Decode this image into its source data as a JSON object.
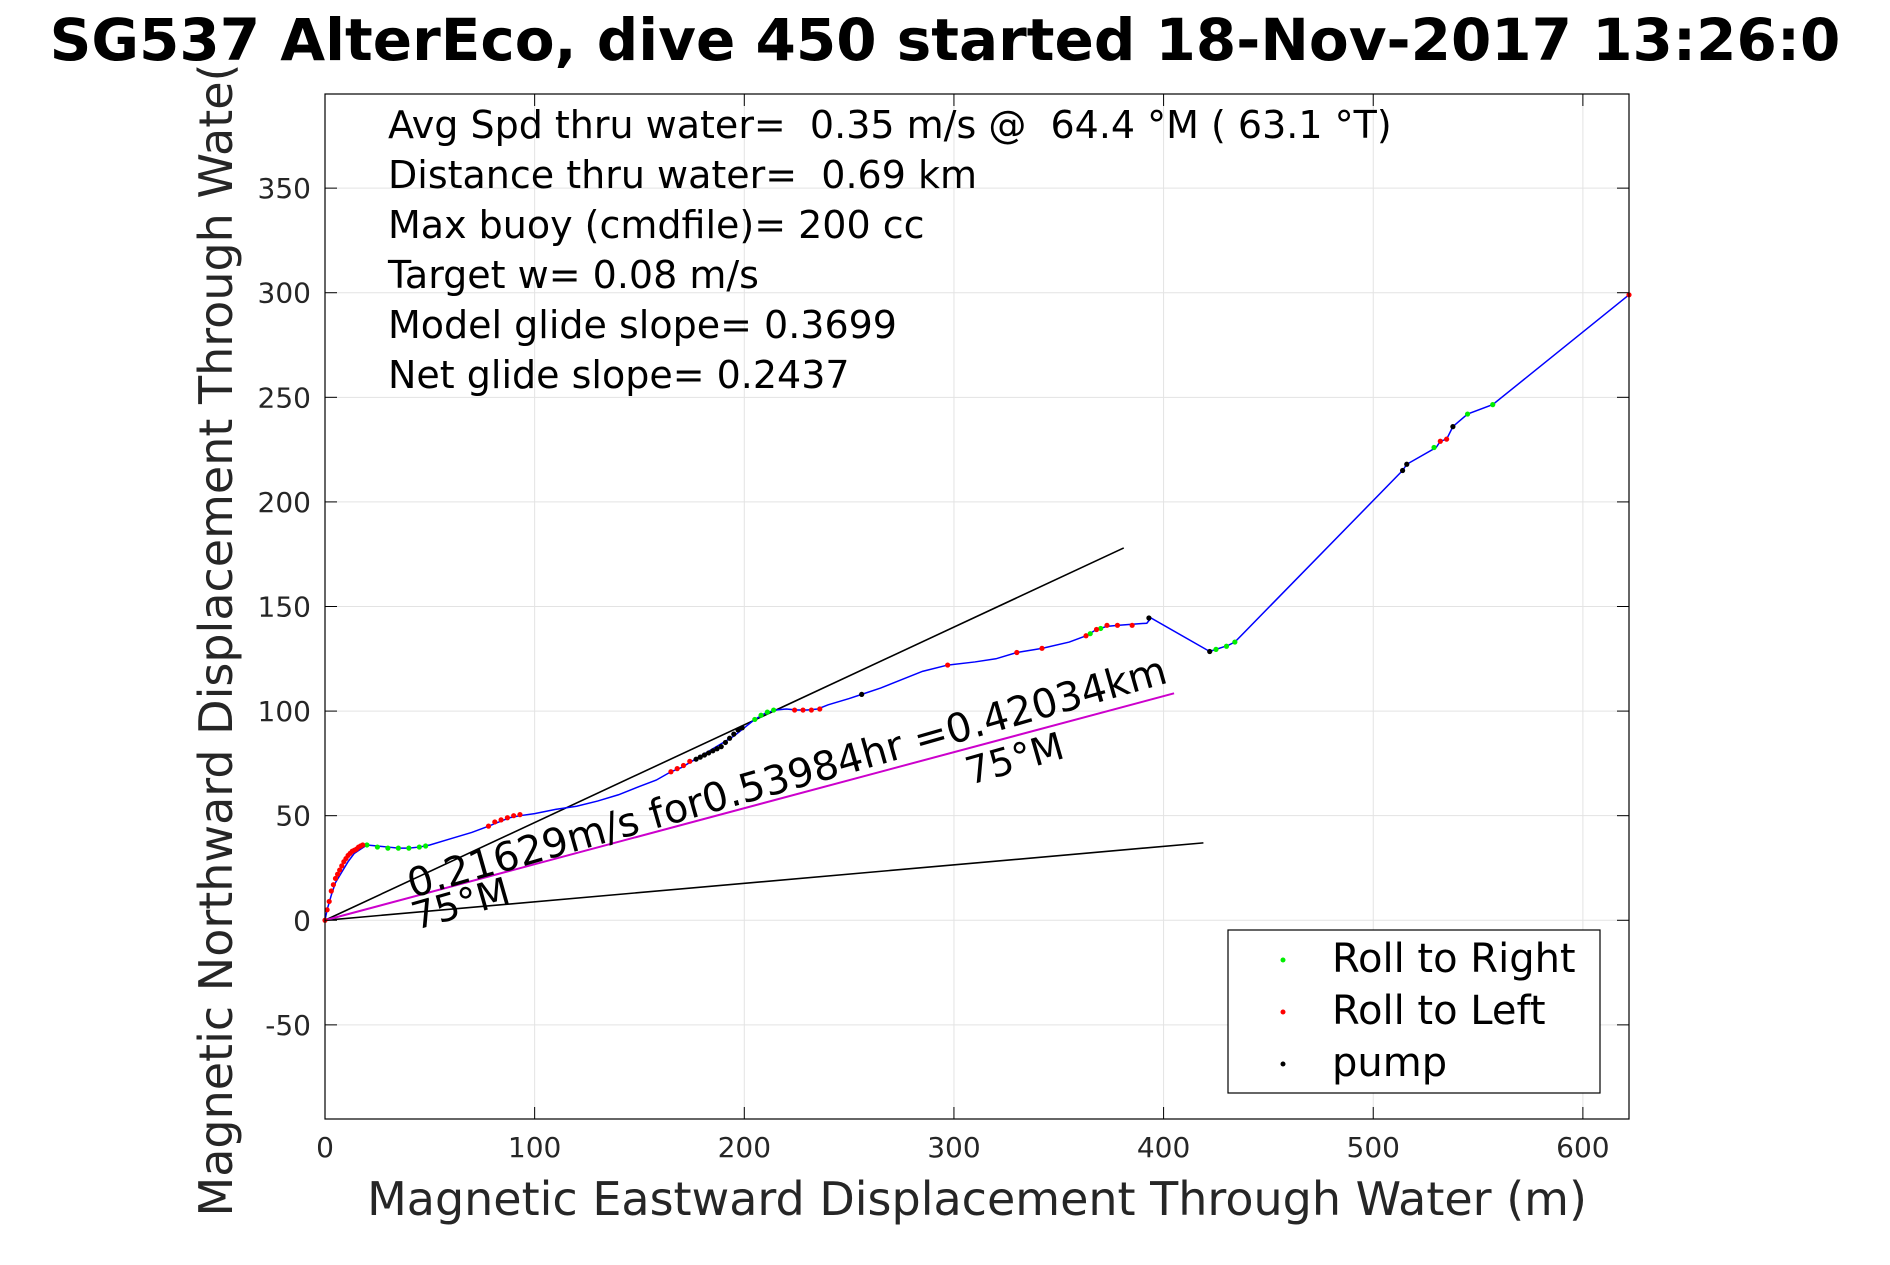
{
  "chart_data": {
    "type": "scatter",
    "title": "SG537 AlterEco, dive 450 started 18-Nov-2017 13:26:0",
    "xlabel": "Magnetic Eastward Displacement Through Water (m)",
    "ylabel": "Magnetic Northward Displacement Through Wate(",
    "xlim": [
      0,
      622
    ],
    "ylim": [
      -95,
      395
    ],
    "xticks": [
      0,
      100,
      200,
      300,
      400,
      500,
      600
    ],
    "yticks": [
      -50,
      0,
      50,
      100,
      150,
      200,
      250,
      300,
      350
    ],
    "grid": true,
    "legend_position": "bottom-right",
    "annotations": [
      "Avg Spd thru water=  0.35 m/s @  64.4 °M ( 63.1 °T)",
      "Distance thru water=  0.69 km",
      "Max buoy (cmdfile)= 200 cc",
      "Target w= 0.08 m/s",
      "Model glide slope= 0.3699",
      "Net glide slope= 0.2437"
    ],
    "line_labels": {
      "current": "0.21629m/s for0.53984hr =0.42034km",
      "heading_far": "75°M",
      "heading_near": "75°M"
    },
    "colors": {
      "track": "#0000ff",
      "roll_right": "#00ee00",
      "roll_left": "#ff0000",
      "pump": "#000000",
      "current": "#cc00cc",
      "glide_lines": "#000000"
    },
    "track": [
      [
        0,
        0
      ],
      [
        1,
        5
      ],
      [
        3,
        12
      ],
      [
        5,
        18
      ],
      [
        8,
        23
      ],
      [
        11,
        28
      ],
      [
        14,
        32
      ],
      [
        17,
        34
      ],
      [
        20,
        36
      ],
      [
        25,
        35.5
      ],
      [
        30,
        35
      ],
      [
        35,
        34.5
      ],
      [
        40,
        34.5
      ],
      [
        45,
        35
      ],
      [
        50,
        36
      ],
      [
        60,
        39
      ],
      [
        70,
        42
      ],
      [
        78,
        45
      ],
      [
        83,
        47
      ],
      [
        88,
        49
      ],
      [
        93,
        50
      ],
      [
        100,
        51
      ],
      [
        110,
        53
      ],
      [
        120,
        54.5
      ],
      [
        130,
        57
      ],
      [
        140,
        60
      ],
      [
        150,
        64
      ],
      [
        158,
        67
      ],
      [
        165,
        71
      ],
      [
        170,
        73
      ],
      [
        175,
        76
      ],
      [
        180,
        79
      ],
      [
        185,
        82
      ],
      [
        190,
        85
      ],
      [
        195,
        88
      ],
      [
        200,
        92
      ],
      [
        205,
        96
      ],
      [
        210,
        99
      ],
      [
        215,
        100.5
      ],
      [
        220,
        101
      ],
      [
        225,
        100.5
      ],
      [
        230,
        100.5
      ],
      [
        235,
        101
      ],
      [
        240,
        103
      ],
      [
        250,
        106
      ],
      [
        256,
        108
      ],
      [
        265,
        111
      ],
      [
        275,
        115
      ],
      [
        285,
        119
      ],
      [
        297,
        122
      ],
      [
        310,
        123.5
      ],
      [
        320,
        125
      ],
      [
        330,
        128
      ],
      [
        342,
        130
      ],
      [
        355,
        133
      ],
      [
        363,
        136
      ],
      [
        368,
        139
      ],
      [
        373,
        140.5
      ],
      [
        378,
        141
      ],
      [
        385,
        141.5
      ],
      [
        392,
        142
      ],
      [
        394,
        144.5
      ],
      [
        422,
        128.5
      ],
      [
        425,
        129.5
      ],
      [
        428,
        130.5
      ],
      [
        431,
        131.5
      ],
      [
        434,
        133
      ],
      [
        514,
        215
      ],
      [
        516,
        218
      ],
      [
        530,
        226
      ],
      [
        532,
        229
      ],
      [
        535,
        230
      ],
      [
        538,
        236
      ],
      [
        545,
        242
      ],
      [
        557,
        246.5
      ],
      [
        622,
        299
      ]
    ],
    "roll_right_points": [
      [
        20,
        36
      ],
      [
        25,
        35
      ],
      [
        30,
        34.5
      ],
      [
        35,
        34.5
      ],
      [
        40,
        34.5
      ],
      [
        45,
        35
      ],
      [
        48,
        35.5
      ],
      [
        205,
        96
      ],
      [
        208,
        98
      ],
      [
        211,
        99.5
      ],
      [
        214,
        100.5
      ],
      [
        365,
        137
      ],
      [
        370,
        139.5
      ],
      [
        425,
        129.5
      ],
      [
        430,
        131
      ],
      [
        434,
        133
      ],
      [
        545,
        242
      ],
      [
        557,
        246.5
      ],
      [
        529,
        226
      ]
    ],
    "roll_left_points": [
      [
        1,
        5
      ],
      [
        2,
        9
      ],
      [
        3,
        14
      ],
      [
        4,
        17
      ],
      [
        5,
        20
      ],
      [
        6,
        22
      ],
      [
        7,
        24
      ],
      [
        8,
        26
      ],
      [
        9,
        28
      ],
      [
        10,
        29.5
      ],
      [
        11,
        31
      ],
      [
        12,
        32
      ],
      [
        13,
        33
      ],
      [
        14,
        33.5
      ],
      [
        15,
        34
      ],
      [
        16,
        35
      ],
      [
        17,
        35.5
      ],
      [
        18,
        36
      ],
      [
        78,
        45
      ],
      [
        81,
        47
      ],
      [
        84,
        48
      ],
      [
        87,
        49
      ],
      [
        90,
        50
      ],
      [
        93,
        50.5
      ],
      [
        165,
        71
      ],
      [
        168,
        72.5
      ],
      [
        171,
        74
      ],
      [
        174,
        76
      ],
      [
        224,
        100.5
      ],
      [
        228,
        100.5
      ],
      [
        232,
        100.5
      ],
      [
        236,
        101
      ],
      [
        297,
        122
      ],
      [
        330,
        128
      ],
      [
        342,
        130
      ],
      [
        363,
        136
      ],
      [
        368,
        139
      ],
      [
        373,
        141
      ],
      [
        378,
        141
      ],
      [
        385,
        141
      ],
      [
        532,
        229
      ],
      [
        535,
        230
      ],
      [
        0,
        0
      ],
      [
        622,
        299
      ]
    ],
    "pump_points": [
      [
        177,
        77
      ],
      [
        179,
        78
      ],
      [
        181,
        79
      ],
      [
        183,
        80
      ],
      [
        185,
        81
      ],
      [
        187,
        82
      ],
      [
        189,
        83
      ],
      [
        191,
        85
      ],
      [
        193,
        87
      ],
      [
        195,
        89
      ],
      [
        197,
        91
      ],
      [
        199,
        92
      ],
      [
        256,
        108
      ],
      [
        393,
        144.5
      ],
      [
        422,
        128.5
      ],
      [
        514,
        215
      ],
      [
        516,
        218
      ],
      [
        538,
        236
      ]
    ],
    "glide_lines": [
      {
        "x": [
          0,
          381
        ],
        "y": [
          0,
          178
        ]
      },
      {
        "x": [
          0,
          419
        ],
        "y": [
          0,
          37
        ]
      }
    ],
    "current_line": {
      "x": [
        0,
        405
      ],
      "y": [
        0,
        108.5
      ]
    },
    "legend": [
      {
        "label": "Roll to Right",
        "color": "#00ee00"
      },
      {
        "label": "Roll to Left",
        "color": "#ff0000"
      },
      {
        "label": "pump",
        "color": "#000000"
      }
    ]
  }
}
